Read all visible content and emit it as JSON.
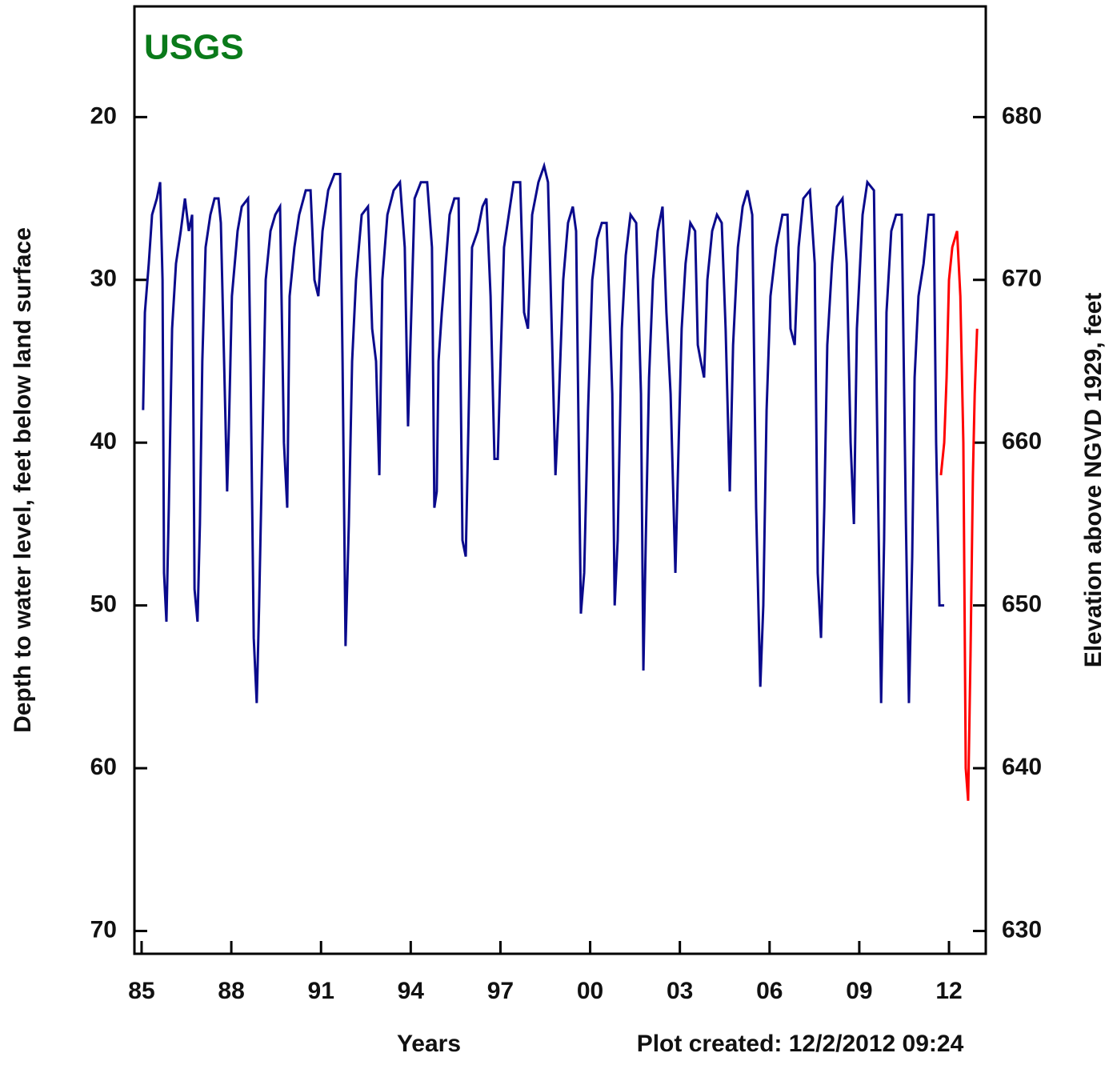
{
  "chart_data": {
    "type": "line",
    "logo": "USGS",
    "logo_color": "#0a7a1a",
    "x_label": "Years",
    "y_label": "Depth to water level, feet below land surface",
    "y2_label": "Elevation above NGVD 1929, feet",
    "note": "Plot created: 12/2/2012 09:24",
    "xlim": [
      1984.76,
      2013.23
    ],
    "xticks": [
      {
        "value": 1985,
        "label": "85"
      },
      {
        "value": 1988,
        "label": "88"
      },
      {
        "value": 1991,
        "label": "91"
      },
      {
        "value": 1994,
        "label": "94"
      },
      {
        "value": 1997,
        "label": "97"
      },
      {
        "value": 2000,
        "label": "00"
      },
      {
        "value": 2003,
        "label": "03"
      },
      {
        "value": 2006,
        "label": "06"
      },
      {
        "value": 2009,
        "label": "09"
      },
      {
        "value": 2012,
        "label": "12"
      }
    ],
    "ylim": [
      13.2,
      71.4
    ],
    "y_inverted": true,
    "yticks": [
      20,
      30,
      40,
      50,
      60,
      70
    ],
    "y2lim": [
      628.6,
      686.8
    ],
    "y2ticks": [
      630,
      640,
      650,
      660,
      670,
      680
    ],
    "series": [
      {
        "color": "#0a0a8c",
        "x": [
          1985.05,
          1985.11,
          1985.24,
          1985.35,
          1985.51,
          1985.62,
          1985.7,
          1985.75,
          1985.83,
          1985.91,
          1986.02,
          1986.15,
          1986.31,
          1986.45,
          1986.58,
          1986.69,
          1986.77,
          1986.87,
          1986.95,
          1987.03,
          1987.14,
          1987.3,
          1987.44,
          1987.57,
          1987.65,
          1987.86,
          1987.92,
          1988.02,
          1988.21,
          1988.35,
          1988.56,
          1988.64,
          1988.75,
          1988.85,
          1988.93,
          1989.04,
          1989.15,
          1989.31,
          1989.47,
          1989.63,
          1989.76,
          1989.87,
          1989.95,
          1990.11,
          1990.27,
          1990.49,
          1990.65,
          1990.78,
          1990.91,
          1991.05,
          1991.24,
          1991.45,
          1991.64,
          1991.72,
          1991.82,
          1991.93,
          1992.04,
          1992.17,
          1992.36,
          1992.57,
          1992.71,
          1992.84,
          1992.95,
          1993.05,
          1993.22,
          1993.43,
          1993.64,
          1993.8,
          1993.91,
          1994.02,
          1994.13,
          1994.34,
          1994.55,
          1994.71,
          1994.79,
          1994.87,
          1994.93,
          1995.04,
          1995.17,
          1995.3,
          1995.46,
          1995.6,
          1995.73,
          1995.84,
          1995.94,
          1996.05,
          1996.24,
          1996.4,
          1996.53,
          1996.67,
          1996.8,
          1996.91,
          1997.02,
          1997.12,
          1997.28,
          1997.44,
          1997.66,
          1997.79,
          1997.92,
          1998.06,
          1998.27,
          1998.46,
          1998.59,
          1998.73,
          1998.84,
          1998.94,
          1999.1,
          1999.26,
          1999.42,
          1999.53,
          1999.69,
          1999.8,
          1999.93,
          2000.07,
          2000.23,
          2000.39,
          2000.55,
          2000.74,
          2000.82,
          2000.92,
          2001.06,
          2001.19,
          2001.35,
          2001.54,
          2001.7,
          2001.78,
          2001.86,
          2001.97,
          2002.1,
          2002.26,
          2002.42,
          2002.55,
          2002.69,
          2002.85,
          2002.96,
          2003.06,
          2003.19,
          2003.35,
          2003.51,
          2003.6,
          2003.7,
          2003.81,
          2003.92,
          2004.08,
          2004.24,
          2004.4,
          2004.53,
          2004.67,
          2004.78,
          2004.94,
          2005.1,
          2005.26,
          2005.42,
          2005.55,
          2005.69,
          2005.79,
          2005.9,
          2006.03,
          2006.22,
          2006.43,
          2006.6,
          2006.7,
          2006.84,
          2006.97,
          2007.13,
          2007.35,
          2007.51,
          2007.61,
          2007.72,
          2007.83,
          2007.93,
          2008.09,
          2008.25,
          2008.44,
          2008.58,
          2008.71,
          2008.82,
          2008.92,
          2009.11,
          2009.27,
          2009.49,
          2009.62,
          2009.73,
          2009.83,
          2009.91,
          2010.07,
          2010.23,
          2010.42,
          2010.56,
          2010.66,
          2010.77,
          2010.85,
          2010.98,
          2011.15,
          2011.31,
          2011.49,
          2011.57,
          2011.68,
          2011.84
        ],
        "values": [
          38,
          32,
          29,
          26,
          25,
          24,
          30,
          48,
          51,
          44,
          33,
          29,
          27,
          25,
          27,
          26,
          49,
          51,
          45,
          35,
          28,
          26,
          25,
          25,
          26.5,
          43,
          39,
          31,
          27,
          25.5,
          25,
          35,
          52,
          56,
          50,
          40,
          30,
          27,
          26,
          25.5,
          40,
          44,
          31,
          28,
          26,
          24.5,
          24.5,
          30,
          31,
          27,
          24.5,
          23.5,
          23.5,
          35,
          52.5,
          45,
          35,
          30,
          26,
          25.5,
          33,
          35,
          42,
          30,
          26,
          24.5,
          24,
          28,
          39,
          32,
          25,
          24,
          24,
          28,
          44,
          43,
          35,
          32,
          29,
          26,
          25,
          25,
          46,
          47,
          38,
          28,
          27,
          25.5,
          25,
          31,
          41,
          41,
          34,
          28,
          26,
          24,
          24,
          32,
          33,
          26,
          24,
          23,
          24,
          34,
          42,
          38,
          30,
          26.5,
          25.5,
          27,
          50.5,
          48,
          38,
          30,
          27.5,
          26.5,
          26.5,
          37,
          50,
          46,
          33,
          28.5,
          26,
          26.5,
          37,
          54,
          46,
          36,
          30,
          27,
          25.5,
          32,
          37,
          48,
          40,
          33,
          29,
          26.5,
          27,
          34,
          35,
          36,
          30,
          27,
          26,
          26.5,
          33,
          43,
          34,
          28,
          25.5,
          24.5,
          26,
          44,
          55,
          50,
          38,
          31,
          28,
          26,
          26,
          33,
          34,
          28,
          25,
          24.5,
          29,
          48,
          52,
          44,
          34,
          29,
          25.5,
          25,
          29,
          40,
          45,
          33,
          26,
          24,
          24.5,
          42,
          56,
          46,
          32,
          27,
          26,
          26,
          45,
          56,
          47,
          36,
          31,
          29,
          26,
          26,
          40,
          50,
          50
        ]
      },
      {
        "color": "#ff0000",
        "x": [
          2011.73,
          2011.84,
          2011.92,
          2012.0,
          2012.11,
          2012.27,
          2012.38,
          2012.48,
          2012.56,
          2012.64,
          2012.72,
          2012.8,
          2012.86,
          2012.94
        ],
        "values": [
          42,
          40,
          36,
          30,
          28,
          27,
          31,
          40,
          60,
          62,
          53,
          42,
          37,
          33
        ]
      }
    ]
  }
}
